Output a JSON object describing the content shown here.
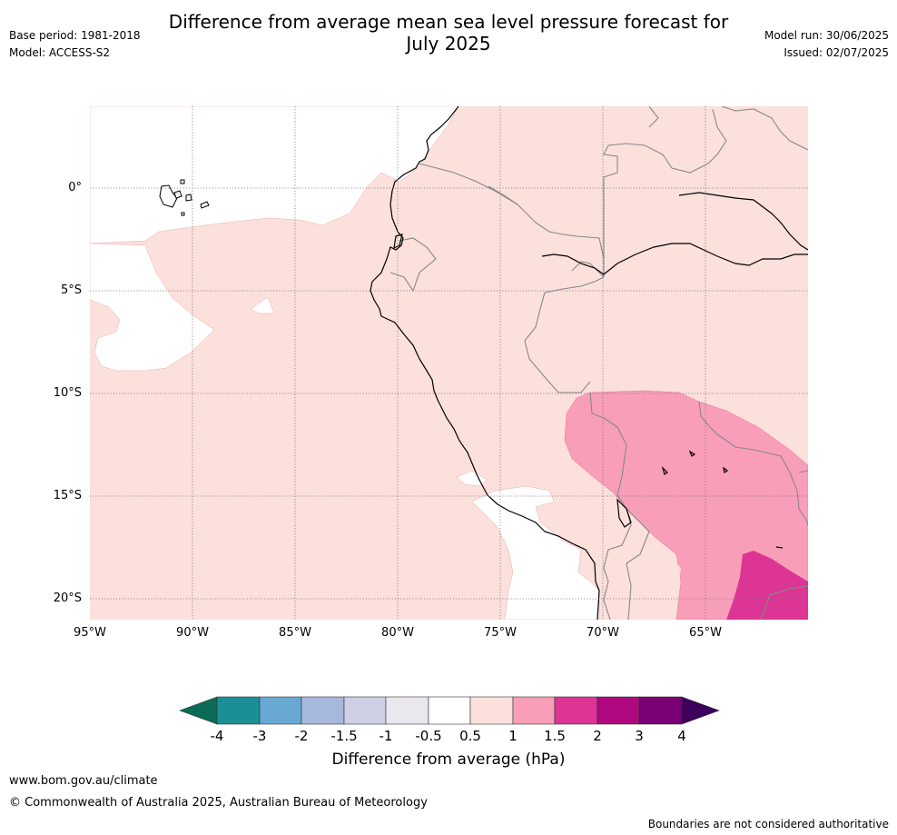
{
  "title_line1": "Difference from average mean sea level pressure forecast for",
  "title_line2": "July 2025",
  "meta_left": {
    "base_period": "Base period: 1981-2018",
    "model": "Model: ACCESS-S2"
  },
  "meta_right": {
    "model_run": "Model run: 30/06/2025",
    "issued": "Issued: 02/07/2025"
  },
  "map": {
    "lat_labels": [
      "0°",
      "5°S",
      "10°S",
      "15°S",
      "20°S"
    ],
    "lon_labels": [
      "95°W",
      "90°W",
      "85°W",
      "80°W",
      "75°W",
      "70°W",
      "65°W"
    ],
    "colors": {
      "0.5-1": "#fce0dc",
      "1-1.5": "#f89eb8",
      "1.5-2": "#dc3595",
      "coast": "#000000",
      "borders": "#888888"
    }
  },
  "colorbar": {
    "title": "Difference from average (hPa)",
    "ticks": [
      "-4",
      "-3",
      "-2",
      "-1.5",
      "-1",
      "-0.5",
      "0.5",
      "1",
      "1.5",
      "2",
      "3",
      "4"
    ],
    "colors": [
      "#0b6b58",
      "#1a9096",
      "#6aa8d4",
      "#a6b8dc",
      "#cfd0e6",
      "#eae8ee",
      "#ffffff",
      "#fce0dc",
      "#f89eb8",
      "#dc3595",
      "#b0087e",
      "#7a0075",
      "#3e005a"
    ]
  },
  "footer": {
    "website": "www.bom.gov.au/climate",
    "copyright": "© Commonwealth of Australia 2025, Australian Bureau of Meteorology",
    "disclaimer": "Boundaries are not considered authoritative"
  }
}
